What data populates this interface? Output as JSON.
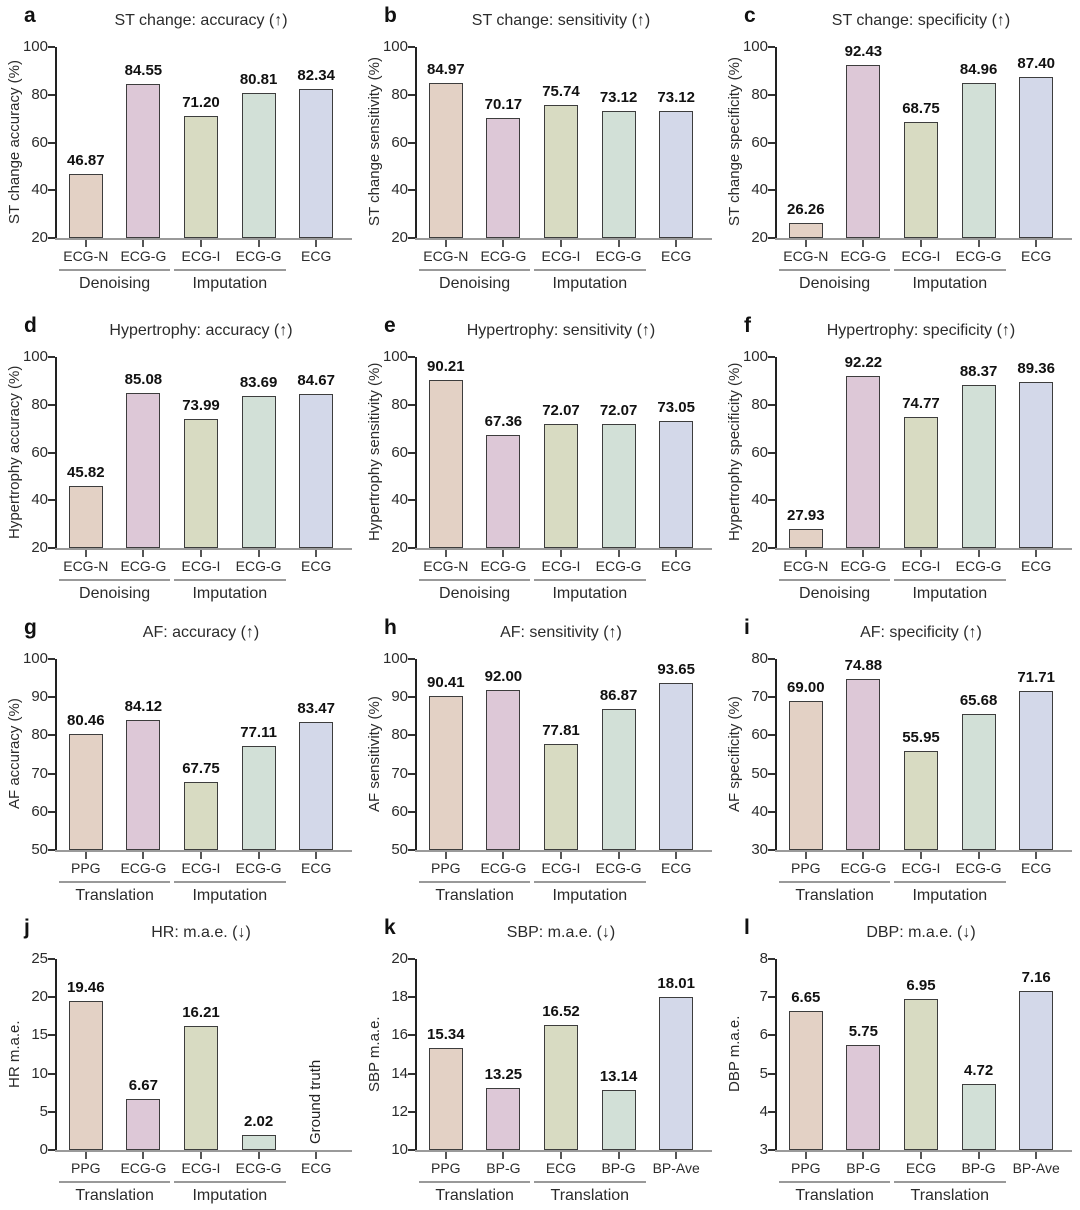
{
  "figure": {
    "description": "Twelve-panel bar chart figure comparing signal types on cardiac tasks",
    "background": "#ffffff"
  },
  "style": {
    "bar_colors": [
      "#e3d1c5",
      "#ddc8d7",
      "#d8dbc2",
      "#d2e0d7",
      "#d3d8e9"
    ],
    "bar_border_color": "#3d3d3d",
    "y_axis_color": "#222222",
    "baseline_color": "#9a9a9a",
    "y_tick_color": "#333333",
    "x_tick_color": "#555555",
    "group_line_color": "#999999",
    "text_color": "#2b2b2b",
    "value_label_color": "#111111"
  },
  "chart_data": [
    {
      "type": "bar",
      "letter": "a",
      "title": "ST change: accuracy (↑)",
      "ylabel": "ST change accuracy (%)",
      "ylim": [
        20,
        100
      ],
      "yticks": [
        20,
        40,
        60,
        80,
        100
      ],
      "categories": [
        "ECG-N",
        "ECG-G",
        "ECG-I",
        "ECG-G",
        "ECG"
      ],
      "values": [
        46.87,
        84.55,
        71.2,
        80.81,
        82.34
      ],
      "value_labels": [
        "46.87",
        "84.55",
        "71.20",
        "80.81",
        "82.34"
      ],
      "groups": [
        {
          "label": "Denoising",
          "start": 0,
          "end": 1
        },
        {
          "label": "Imputation",
          "start": 2,
          "end": 3
        }
      ]
    },
    {
      "type": "bar",
      "letter": "b",
      "title": "ST change: sensitivity (↑)",
      "ylabel": "ST change sensitivity (%)",
      "ylim": [
        20,
        100
      ],
      "yticks": [
        20,
        40,
        60,
        80,
        100
      ],
      "categories": [
        "ECG-N",
        "ECG-G",
        "ECG-I",
        "ECG-G",
        "ECG"
      ],
      "values": [
        84.97,
        70.17,
        75.74,
        73.12,
        73.12
      ],
      "value_labels": [
        "84.97",
        "70.17",
        "75.74",
        "73.12",
        "73.12"
      ],
      "groups": [
        {
          "label": "Denoising",
          "start": 0,
          "end": 1
        },
        {
          "label": "Imputation",
          "start": 2,
          "end": 3
        }
      ]
    },
    {
      "type": "bar",
      "letter": "c",
      "title": "ST change: specificity (↑)",
      "ylabel": "ST change specificity (%)",
      "ylim": [
        20,
        100
      ],
      "yticks": [
        20,
        40,
        60,
        80,
        100
      ],
      "categories": [
        "ECG-N",
        "ECG-G",
        "ECG-I",
        "ECG-G",
        "ECG"
      ],
      "values": [
        26.26,
        92.43,
        68.75,
        84.96,
        87.4
      ],
      "value_labels": [
        "26.26",
        "92.43",
        "68.75",
        "84.96",
        "87.40"
      ],
      "groups": [
        {
          "label": "Denoising",
          "start": 0,
          "end": 1
        },
        {
          "label": "Imputation",
          "start": 2,
          "end": 3
        }
      ]
    },
    {
      "type": "bar",
      "letter": "d",
      "title": "Hypertrophy: accuracy (↑)",
      "ylabel": "Hypertrophy accuracy (%)",
      "ylim": [
        20,
        100
      ],
      "yticks": [
        20,
        40,
        60,
        80,
        100
      ],
      "categories": [
        "ECG-N",
        "ECG-G",
        "ECG-I",
        "ECG-G",
        "ECG"
      ],
      "values": [
        45.82,
        85.08,
        73.99,
        83.69,
        84.67
      ],
      "value_labels": [
        "45.82",
        "85.08",
        "73.99",
        "83.69",
        "84.67"
      ],
      "groups": [
        {
          "label": "Denoising",
          "start": 0,
          "end": 1
        },
        {
          "label": "Imputation",
          "start": 2,
          "end": 3
        }
      ]
    },
    {
      "type": "bar",
      "letter": "e",
      "title": "Hypertrophy: sensitivity (↑)",
      "ylabel": "Hypertrophy sensitivity (%)",
      "ylim": [
        20,
        100
      ],
      "yticks": [
        20,
        40,
        60,
        80,
        100
      ],
      "categories": [
        "ECG-N",
        "ECG-G",
        "ECG-I",
        "ECG-G",
        "ECG"
      ],
      "values": [
        90.21,
        67.36,
        72.07,
        72.07,
        73.05
      ],
      "value_labels": [
        "90.21",
        "67.36",
        "72.07",
        "72.07",
        "73.05"
      ],
      "groups": [
        {
          "label": "Denoising",
          "start": 0,
          "end": 1
        },
        {
          "label": "Imputation",
          "start": 2,
          "end": 3
        }
      ]
    },
    {
      "type": "bar",
      "letter": "f",
      "title": "Hypertrophy: specificity (↑)",
      "ylabel": "Hypertrophy specificity (%)",
      "ylim": [
        20,
        100
      ],
      "yticks": [
        20,
        40,
        60,
        80,
        100
      ],
      "categories": [
        "ECG-N",
        "ECG-G",
        "ECG-I",
        "ECG-G",
        "ECG"
      ],
      "values": [
        27.93,
        92.22,
        74.77,
        88.37,
        89.36
      ],
      "value_labels": [
        "27.93",
        "92.22",
        "74.77",
        "88.37",
        "89.36"
      ],
      "groups": [
        {
          "label": "Denoising",
          "start": 0,
          "end": 1
        },
        {
          "label": "Imputation",
          "start": 2,
          "end": 3
        }
      ]
    },
    {
      "type": "bar",
      "letter": "g",
      "title": "AF: accuracy (↑)",
      "ylabel": "AF accuracy (%)",
      "ylim": [
        50,
        100
      ],
      "yticks": [
        50,
        60,
        70,
        80,
        90,
        100
      ],
      "categories": [
        "PPG",
        "ECG-G",
        "ECG-I",
        "ECG-G",
        "ECG"
      ],
      "values": [
        80.46,
        84.12,
        67.75,
        77.11,
        83.47
      ],
      "value_labels": [
        "80.46",
        "84.12",
        "67.75",
        "77.11",
        "83.47"
      ],
      "groups": [
        {
          "label": "Translation",
          "start": 0,
          "end": 1
        },
        {
          "label": "Imputation",
          "start": 2,
          "end": 3
        }
      ]
    },
    {
      "type": "bar",
      "letter": "h",
      "title": "AF: sensitivity (↑)",
      "ylabel": "AF sensitivity (%)",
      "ylim": [
        50,
        100
      ],
      "yticks": [
        50,
        60,
        70,
        80,
        90,
        100
      ],
      "categories": [
        "PPG",
        "ECG-G",
        "ECG-I",
        "ECG-G",
        "ECG"
      ],
      "values": [
        90.41,
        92.0,
        77.81,
        86.87,
        93.65
      ],
      "value_labels": [
        "90.41",
        "92.00",
        "77.81",
        "86.87",
        "93.65"
      ],
      "groups": [
        {
          "label": "Translation",
          "start": 0,
          "end": 1
        },
        {
          "label": "Imputation",
          "start": 2,
          "end": 3
        }
      ]
    },
    {
      "type": "bar",
      "letter": "i",
      "title": "AF: specificity (↑)",
      "ylabel": "AF specificity (%)",
      "ylim": [
        30,
        80
      ],
      "yticks": [
        30,
        40,
        50,
        60,
        70,
        80
      ],
      "categories": [
        "PPG",
        "ECG-G",
        "ECG-I",
        "ECG-G",
        "ECG"
      ],
      "values": [
        69.0,
        74.88,
        55.95,
        65.68,
        71.71
      ],
      "value_labels": [
        "69.00",
        "74.88",
        "55.95",
        "65.68",
        "71.71"
      ],
      "groups": [
        {
          "label": "Translation",
          "start": 0,
          "end": 1
        },
        {
          "label": "Imputation",
          "start": 2,
          "end": 3
        }
      ]
    },
    {
      "type": "bar",
      "letter": "j",
      "title": "HR: m.a.e. (↓)",
      "ylabel": "HR m.a.e.",
      "ylim": [
        0,
        25
      ],
      "yticks": [
        0,
        5,
        10,
        15,
        20,
        25
      ],
      "categories": [
        "PPG",
        "ECG-G",
        "ECG-I",
        "ECG-G",
        "ECG"
      ],
      "values": [
        19.46,
        6.67,
        16.21,
        2.02,
        null
      ],
      "value_labels": [
        "19.46",
        "6.67",
        "16.21",
        "2.02",
        ""
      ],
      "groups": [
        {
          "label": "Translation",
          "start": 0,
          "end": 1
        },
        {
          "label": "Imputation",
          "start": 2,
          "end": 3
        }
      ],
      "annotation": {
        "index": 4,
        "text": "Ground truth"
      }
    },
    {
      "type": "bar",
      "letter": "k",
      "title": "SBP: m.a.e. (↓)",
      "ylabel": "SBP m.a.e.",
      "ylim": [
        10,
        20
      ],
      "yticks": [
        10,
        12,
        14,
        16,
        18,
        20
      ],
      "categories": [
        "PPG",
        "BP-G",
        "ECG",
        "BP-G",
        "BP-Ave"
      ],
      "values": [
        15.34,
        13.25,
        16.52,
        13.14,
        18.01
      ],
      "value_labels": [
        "15.34",
        "13.25",
        "16.52",
        "13.14",
        "18.01"
      ],
      "groups": [
        {
          "label": "Translation",
          "start": 0,
          "end": 1
        },
        {
          "label": "Translation",
          "start": 2,
          "end": 3
        }
      ]
    },
    {
      "type": "bar",
      "letter": "l",
      "title": "DBP: m.a.e. (↓)",
      "ylabel": "DBP m.a.e.",
      "ylim": [
        3,
        8
      ],
      "yticks": [
        3,
        4,
        5,
        6,
        7,
        8
      ],
      "categories": [
        "PPG",
        "BP-G",
        "ECG",
        "BP-G",
        "BP-Ave"
      ],
      "values": [
        6.65,
        5.75,
        6.95,
        4.72,
        7.16
      ],
      "value_labels": [
        "6.65",
        "5.75",
        "6.95",
        "4.72",
        "7.16"
      ],
      "groups": [
        {
          "label": "Translation",
          "start": 0,
          "end": 1
        },
        {
          "label": "Translation",
          "start": 2,
          "end": 3
        }
      ]
    }
  ]
}
